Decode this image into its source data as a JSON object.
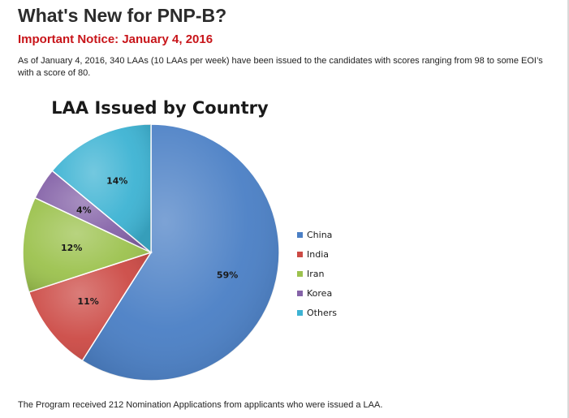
{
  "heading": "What's New for PNP-B?",
  "notice": "Important Notice: January 4, 2016",
  "intro": "As of January 4, 2016, 340 LAAs (10 LAAs per week) have been issued to the candidates with scores ranging from 98 to some EOI’s with a score of 80.",
  "footer": "The Program received 212 Nomination Applications from applicants who were issued a LAA.",
  "chart_data": {
    "type": "pie",
    "title": "LAA Issued by Country",
    "legend_position": "right",
    "slices": [
      {
        "label": "China",
        "value": 59,
        "display": "59%",
        "color": "#4a7fc5"
      },
      {
        "label": "India",
        "value": 11,
        "display": "11%",
        "color": "#cc4a45"
      },
      {
        "label": "Iran",
        "value": 12,
        "display": "12%",
        "color": "#9cc24e"
      },
      {
        "label": "Korea",
        "value": 4,
        "display": "4%",
        "color": "#8563a8"
      },
      {
        "label": "Others",
        "value": 14,
        "display": "14%",
        "color": "#3db3d3"
      }
    ]
  }
}
